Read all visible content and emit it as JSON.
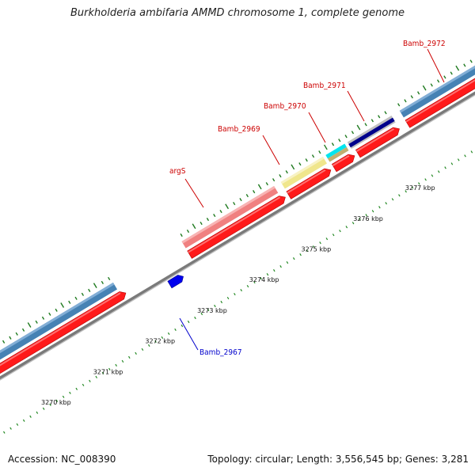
{
  "title": "Burkholderia ambifaria AMMD chromosome 1, complete genome",
  "footer": {
    "accession": "Accession: NC_008390",
    "summary": "Topology: circular; Length: 3,556,545 bp; Genes: 3,281"
  },
  "scale": {
    "unit": "kbp",
    "labels": [
      {
        "text": "3270 kbp",
        "kbp": 3270
      },
      {
        "text": "3271 kbp",
        "kbp": 3271
      },
      {
        "text": "3272 kbp",
        "kbp": 3272
      },
      {
        "text": "3273 kbp",
        "kbp": 3273
      },
      {
        "text": "3274 kbp",
        "kbp": 3274
      },
      {
        "text": "3275 kbp",
        "kbp": 3275
      },
      {
        "text": "3276 kbp",
        "kbp": 3276
      },
      {
        "text": "3277 kbp",
        "kbp": 3277
      }
    ]
  },
  "colors": {
    "axis": "#7a7a7a",
    "cds": "#ff0000",
    "label_red": "#cc0000",
    "label_blue": "#0000cc",
    "ruler_dots": "#228822"
  },
  "features": [
    {
      "name": "Bamb_2967",
      "track": "inner-cds",
      "color": "#0000ee",
      "label_color": "#0000cc"
    },
    {
      "name": "argS",
      "track": "outer",
      "color": "#f08080",
      "label_color": "#cc0000"
    },
    {
      "name": "Bamb_2969",
      "track": "outer",
      "color": "#f0e68c",
      "label_color": "#cc0000"
    },
    {
      "name": "Bamb_2970",
      "track": "outer",
      "color": "#00e5ee",
      "label_color": "#cc0000"
    },
    {
      "name": "Bamb_2971",
      "track": "outer",
      "color": "#00008b",
      "label_color": "#cc0000"
    },
    {
      "name": "Bamb_2972",
      "track": "outer",
      "color": "#4682b4",
      "label_color": "#cc0000"
    }
  ]
}
